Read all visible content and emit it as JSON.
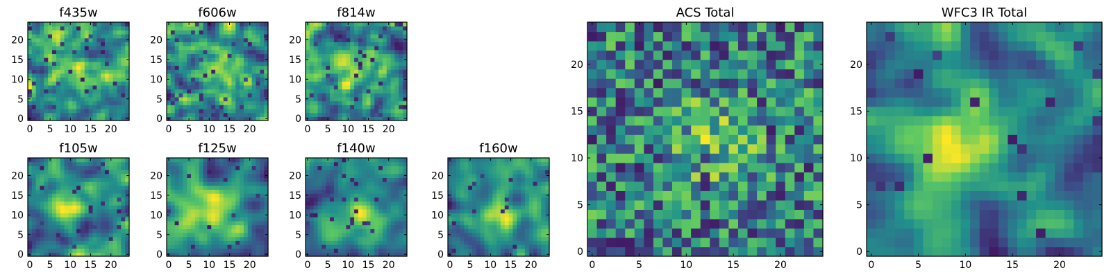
{
  "chart_data": [
    {
      "id": "f435w",
      "type": "heatmap",
      "title": "f435w",
      "size": 25,
      "xticks": [
        0,
        5,
        10,
        15,
        20
      ],
      "yticks": [
        0,
        5,
        10,
        15,
        20
      ],
      "seed": 11,
      "blob": 0.25,
      "blob_center": [
        13,
        12
      ],
      "blob_width": 4,
      "noise_sigma": 1.0,
      "dark_fraction": 0.06
    },
    {
      "id": "f606w",
      "type": "heatmap",
      "title": "f606w",
      "size": 25,
      "xticks": [
        0,
        5,
        10,
        15,
        20
      ],
      "yticks": [
        0,
        5,
        10,
        15,
        20
      ],
      "seed": 23,
      "blob": 0.35,
      "blob_center": [
        12,
        12
      ],
      "blob_width": 4,
      "noise_sigma": 1.0,
      "dark_fraction": 0.05
    },
    {
      "id": "f814w",
      "type": "heatmap",
      "title": "f814w",
      "size": 25,
      "xticks": [
        0,
        5,
        10,
        15,
        20
      ],
      "yticks": [
        0,
        5,
        10,
        15,
        20
      ],
      "seed": 37,
      "blob": 0.35,
      "blob_center": [
        12,
        12
      ],
      "blob_width": 4,
      "noise_sigma": 1.0,
      "dark_fraction": 0.05
    },
    {
      "id": "f105w",
      "type": "heatmap",
      "title": "f105w",
      "size": 25,
      "xticks": [
        0,
        5,
        10,
        15,
        20
      ],
      "yticks": [
        0,
        5,
        10,
        15,
        20
      ],
      "seed": 41,
      "blob": 0.5,
      "blob_center": [
        10,
        13
      ],
      "blob_width": 3.5,
      "noise_sigma": 1.4,
      "dark_fraction": 0.03
    },
    {
      "id": "f125w",
      "type": "heatmap",
      "title": "f125w",
      "size": 25,
      "xticks": [
        0,
        5,
        10,
        15,
        20
      ],
      "yticks": [
        0,
        5,
        10,
        15,
        20
      ],
      "seed": 53,
      "blob": 0.5,
      "blob_center": [
        11,
        11
      ],
      "blob_width": 4,
      "noise_sigma": 1.4,
      "dark_fraction": 0.03
    },
    {
      "id": "f140w",
      "type": "heatmap",
      "title": "f140w",
      "size": 25,
      "xticks": [
        0,
        5,
        10,
        15,
        20
      ],
      "yticks": [
        0,
        5,
        10,
        15,
        20
      ],
      "seed": 67,
      "blob": 0.5,
      "blob_center": [
        13,
        10
      ],
      "blob_width": 3.5,
      "noise_sigma": 1.4,
      "dark_fraction": 0.03
    },
    {
      "id": "f160w",
      "type": "heatmap",
      "title": "f160w",
      "size": 25,
      "xticks": [
        0,
        5,
        10,
        15,
        20
      ],
      "yticks": [
        0,
        5,
        10,
        15,
        20
      ],
      "seed": 79,
      "blob": 0.55,
      "blob_center": [
        12,
        10
      ],
      "blob_width": 3.5,
      "noise_sigma": 1.4,
      "dark_fraction": 0.03
    },
    {
      "id": "acs_total",
      "type": "heatmap",
      "title": "ACS Total",
      "size": 25,
      "xticks": [
        0,
        5,
        10,
        15,
        20
      ],
      "yticks": [
        0,
        5,
        10,
        15,
        20
      ],
      "seed": 97,
      "blob": 0.35,
      "blob_center": [
        13,
        12
      ],
      "blob_width": 3,
      "noise_sigma": 0.0,
      "dark_fraction": 0.04
    },
    {
      "id": "wfc3_ir_total",
      "type": "heatmap",
      "title": "WFC3 IR Total",
      "size": 25,
      "xticks": [
        0,
        5,
        10,
        15,
        20
      ],
      "yticks": [
        0,
        5,
        10,
        15,
        20
      ],
      "seed": 101,
      "blob": 0.6,
      "blob_center": [
        11,
        12
      ],
      "blob_width": 3,
      "noise_sigma": 1.2,
      "dark_fraction": 0.03
    }
  ],
  "colormap": {
    "name": "viridis",
    "stops": [
      "#440154",
      "#3b528b",
      "#21918c",
      "#5ec962",
      "#fde725"
    ]
  }
}
